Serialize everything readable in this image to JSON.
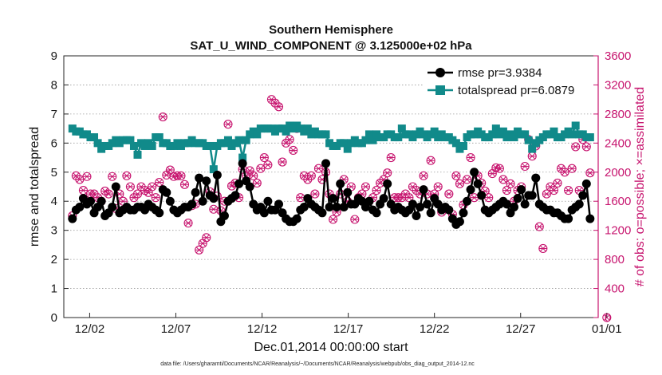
{
  "chart_data": {
    "type": "line",
    "title": "Southern Hemisphere",
    "subtitle": "SAT_U_WIND_COMPONENT @ 3.125000e+02 hPa",
    "xlabel": "Dec.01,2014 00:00:00 start",
    "ylabel_left": "rmse and totalspread",
    "ylabel_right": "# of obs: o=possible; ×=assimilated",
    "footnote": "data file: /Users/gharamti/Documents/NCAR/Reanalysis/~/Documents/NCAR/Reanalysis/webpub/obs_diag_output_2014-12.nc",
    "xlim": [
      0.5,
      31.5
    ],
    "ylim_left": [
      0,
      9
    ],
    "ylim_right": [
      0,
      3600
    ],
    "grid": "horizontal dotted",
    "legend_position": "top-right",
    "x_ticks": [
      {
        "value": 2,
        "label": "12/02"
      },
      {
        "value": 7,
        "label": "12/07"
      },
      {
        "value": 12,
        "label": "12/12"
      },
      {
        "value": 17,
        "label": "12/17"
      },
      {
        "value": 22,
        "label": "12/22"
      },
      {
        "value": 27,
        "label": "12/27"
      },
      {
        "value": 32,
        "label": "01/01"
      }
    ],
    "y_ticks_left": [
      "0",
      "1",
      "2",
      "3",
      "4",
      "5",
      "6",
      "7",
      "8",
      "9"
    ],
    "y_ticks_right": [
      "0",
      "400",
      "800",
      "1200",
      "1600",
      "2000",
      "2400",
      "2800",
      "3200",
      "3600"
    ],
    "series": [
      {
        "name": "rmse pr=3.9384",
        "color": "#000000",
        "marker": "circle",
        "values": [
          3.4,
          3.7,
          3.8,
          4.1,
          3.9,
          4.0,
          3.6,
          3.8,
          4.0,
          3.5,
          3.6,
          3.8,
          4.5,
          3.6,
          3.7,
          3.8,
          3.7,
          3.7,
          3.8,
          3.8,
          3.7,
          3.9,
          3.8,
          3.7,
          3.6,
          4.4,
          4.3,
          4.0,
          3.7,
          3.6,
          3.7,
          3.8,
          3.8,
          3.9,
          4.3,
          4.8,
          4.0,
          4.7,
          4.2,
          4.1,
          4.9,
          3.3,
          3.5,
          4.0,
          4.1,
          4.2,
          4.6,
          5.3,
          4.7,
          4.5,
          3.9,
          3.7,
          3.8,
          3.6,
          4.0,
          3.7,
          3.7,
          3.9,
          3.6,
          3.4,
          3.3,
          3.3,
          3.4,
          3.7,
          3.8,
          4.1,
          3.9,
          3.8,
          3.7,
          3.6,
          5.3,
          3.8,
          4.1,
          3.8,
          4.6,
          3.8,
          4.3,
          3.9,
          3.9,
          4.1,
          4.0,
          3.8,
          4.0,
          3.7,
          3.6,
          3.9,
          4.1,
          4.6,
          3.9,
          3.7,
          3.8,
          3.7,
          3.6,
          3.7,
          3.9,
          3.5,
          3.8,
          4.4,
          3.9,
          3.6,
          4.1,
          3.9,
          3.7,
          3.8,
          3.7,
          3.4,
          3.2,
          3.3,
          3.6,
          4.0,
          4.4,
          5.0,
          4.6,
          4.2,
          3.7,
          3.6,
          3.7,
          3.8,
          3.9,
          4.0,
          3.9,
          3.6,
          3.8,
          4.1,
          4.4,
          3.9,
          4.2,
          4.2,
          4.8,
          3.9,
          3.8,
          3.7,
          3.7,
          3.6,
          3.6,
          3.5,
          3.4,
          3.4,
          3.7,
          3.8,
          3.9,
          4.2,
          4.6,
          3.4
        ]
      },
      {
        "name": "totalspread pr=6.0879",
        "color": "#118a8a",
        "marker": "square",
        "values": [
          6.5,
          6.4,
          6.4,
          6.3,
          6.3,
          6.2,
          6.2,
          6.0,
          5.8,
          5.9,
          5.9,
          6.0,
          6.1,
          6.0,
          6.1,
          6.1,
          6.1,
          5.9,
          5.6,
          6.0,
          5.9,
          6.0,
          5.9,
          6.2,
          6.2,
          6.0,
          6.0,
          5.9,
          5.9,
          6.0,
          5.9,
          6.0,
          6.0,
          6.1,
          6.0,
          6.0,
          6.0,
          5.9,
          5.9,
          5.1,
          5.9,
          6.0,
          6.0,
          6.1,
          5.9,
          6.0,
          6.1,
          5.5,
          6.1,
          6.3,
          6.4,
          6.3,
          6.5,
          6.5,
          6.5,
          6.5,
          6.4,
          6.5,
          6.5,
          6.4,
          6.6,
          6.5,
          6.6,
          6.5,
          6.4,
          6.5,
          6.3,
          6.4,
          6.3,
          6.3,
          6.3,
          6.0,
          5.9,
          5.9,
          6.0,
          6.0,
          5.8,
          6.0,
          6.1,
          6.0,
          6.0,
          6.1,
          6.3,
          6.1,
          6.3,
          6.2,
          6.2,
          6.3,
          6.3,
          6.2,
          6.2,
          6.5,
          6.3,
          6.3,
          6.2,
          6.3,
          6.4,
          6.3,
          6.2,
          6.3,
          6.4,
          6.2,
          6.3,
          6.2,
          6.2,
          6.1,
          6.0,
          5.8,
          5.9,
          6.2,
          6.3,
          6.3,
          6.4,
          6.3,
          6.2,
          6.2,
          6.3,
          6.5,
          6.3,
          6.4,
          6.2,
          6.3,
          6.2,
          6.4,
          6.3,
          6.3,
          6.1,
          5.8,
          6.0,
          6.1,
          6.2,
          6.3,
          6.3,
          6.4,
          6.2,
          6.2,
          6.3,
          6.4,
          6.3,
          6.6,
          6.3,
          6.3,
          6.2,
          6.2
        ]
      },
      {
        "name": "obs possible",
        "color": "#c7156f",
        "marker": "circle-open",
        "values": [
          1400,
          1950,
          1900,
          1750,
          1940,
          1700,
          1700,
          1650,
          1600,
          1740,
          1700,
          1940,
          1500,
          1700,
          1600,
          1950,
          1800,
          1650,
          1700,
          1800,
          1750,
          1720,
          1800,
          1650,
          1860,
          2760,
          1960,
          2030,
          1940,
          1950,
          1950,
          1830,
          1300,
          1540,
          1560,
          930,
          1020,
          1100,
          1730,
          1490,
          1670,
          1470,
          1600,
          2660,
          1810,
          1850,
          1650,
          2040,
          1950,
          2020,
          1950,
          1850,
          2050,
          2200,
          2100,
          3000,
          2950,
          2900,
          2140,
          2400,
          2450,
          2300,
          2600,
          1650,
          1950,
          1900,
          1950,
          1700,
          2050,
          1900,
          2000,
          1700,
          1350,
          1450,
          1700,
          1900,
          1600,
          1800,
          1350,
          1650,
          1700,
          1800,
          1600,
          1650,
          1750,
          1850,
          1900,
          1990,
          2200,
          1650,
          1650,
          1650,
          1700,
          1650,
          1800,
          1750,
          1700,
          1950,
          1700,
          2160,
          1700,
          1800,
          1450,
          1500,
          1700,
          1420,
          1950,
          1840,
          1550,
          1900,
          2200,
          1650,
          1950,
          1850,
          1740,
          1650,
          1980,
          2060,
          2050,
          1900,
          1750,
          1840,
          1600,
          1750,
          1800,
          2080,
          2450,
          2220,
          2360,
          1250,
          950,
          1700,
          1800,
          1750,
          1850,
          2050,
          2000,
          1750,
          2050,
          2350,
          1750,
          2450,
          2350,
          1990
        ]
      },
      {
        "name": "obs assimilated",
        "color": "#c7156f",
        "marker": "x",
        "values": [
          1400,
          1950,
          1900,
          1750,
          1940,
          1700,
          1700,
          1650,
          1600,
          1740,
          1700,
          1940,
          1500,
          1700,
          1600,
          1950,
          1800,
          1650,
          1700,
          1800,
          1750,
          1720,
          1800,
          1650,
          1860,
          2760,
          1960,
          2030,
          1940,
          1950,
          1950,
          1830,
          1300,
          1540,
          1560,
          930,
          1020,
          1100,
          1730,
          1490,
          1670,
          1470,
          1600,
          2660,
          1810,
          1850,
          1650,
          2040,
          1950,
          2020,
          1950,
          1850,
          2050,
          2200,
          2100,
          3000,
          2950,
          2900,
          2140,
          2400,
          2450,
          2300,
          2600,
          1650,
          1950,
          1900,
          1950,
          1700,
          2050,
          1900,
          2000,
          1700,
          1350,
          1450,
          1700,
          1900,
          1600,
          1800,
          1350,
          1650,
          1700,
          1800,
          1600,
          1650,
          1750,
          1850,
          1900,
          1990,
          2200,
          1650,
          1650,
          1650,
          1700,
          1650,
          1800,
          1750,
          1700,
          1950,
          1700,
          2160,
          1700,
          1800,
          1450,
          1500,
          1700,
          1420,
          1950,
          1840,
          1550,
          1900,
          2200,
          1650,
          1950,
          1850,
          1740,
          1650,
          1980,
          2060,
          2050,
          1900,
          1750,
          1840,
          1600,
          1750,
          1800,
          2080,
          2450,
          2220,
          2360,
          1250,
          950,
          1700,
          1800,
          1750,
          1850,
          2050,
          2000,
          1750,
          2050,
          2350,
          1750,
          2450,
          2350,
          1990
        ]
      }
    ]
  }
}
